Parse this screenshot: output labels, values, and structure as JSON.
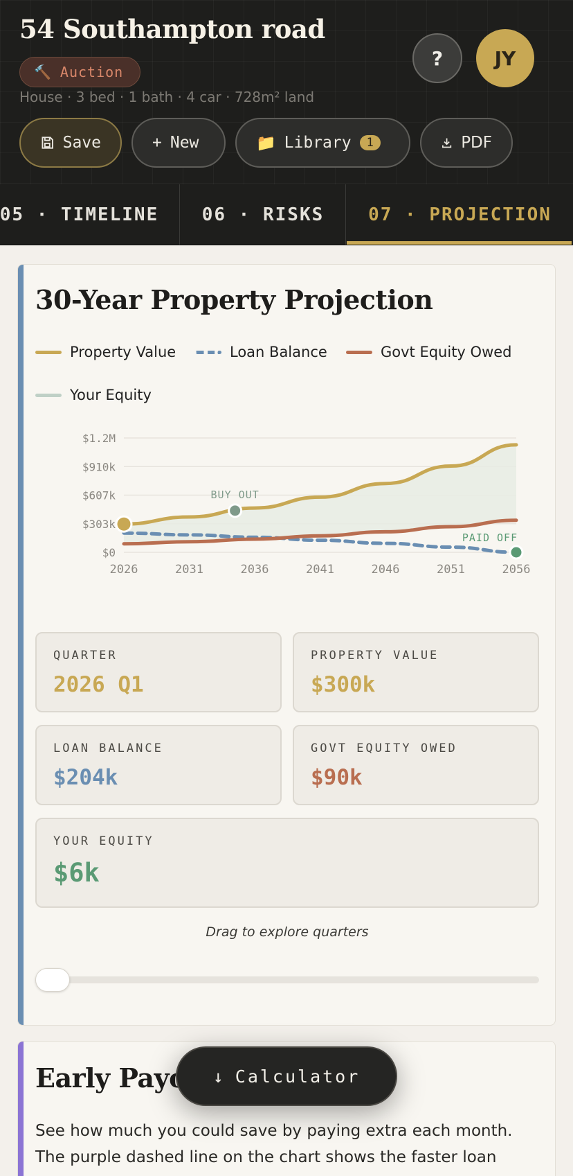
{
  "header": {
    "title": "54 Southampton road",
    "badge": {
      "icon": "hammer-icon",
      "label": "Auction"
    },
    "meta": "House · 3 bed · 1 bath · 4 car · 728m² land",
    "help_label": "?",
    "avatar_initials": "JY"
  },
  "toolbar": {
    "save_label": "Save",
    "new_label": "New",
    "library_label": "Library",
    "library_count": "1",
    "pdf_label": "PDF"
  },
  "tabs": [
    {
      "label": "05 · TIMELINE",
      "active": false
    },
    {
      "label": "06 · RISKS",
      "active": false
    },
    {
      "label": "07 · PROJECTION",
      "active": true
    }
  ],
  "projection": {
    "title": "30-Year Property Projection",
    "legend": [
      {
        "name": "Property Value",
        "color": "#c8a854",
        "style": "solid"
      },
      {
        "name": "Loan Balance",
        "color": "#6a8eb2",
        "style": "dashed"
      },
      {
        "name": "Govt Equity Owed",
        "color": "#b96e50",
        "style": "solid"
      },
      {
        "name": "Your Equity",
        "color": "#bfd0c6",
        "style": "solid"
      }
    ],
    "stats": {
      "quarter_label": "QUARTER",
      "quarter_value": "2026 Q1",
      "property_label": "PROPERTY VALUE",
      "property_value": "$300k",
      "loan_label": "LOAN BALANCE",
      "loan_value": "$204k",
      "govt_label": "GOVT EQUITY OWED",
      "govt_value": "$90k",
      "equity_label": "YOUR EQUITY",
      "equity_value": "$6k"
    },
    "hint": "Drag to explore quarters",
    "slider_position": 0
  },
  "chart_data": {
    "type": "line",
    "title": "30-Year Property Projection",
    "x": [
      2026,
      2031,
      2036,
      2041,
      2046,
      2051,
      2056
    ],
    "x_ticks": [
      "2026",
      "2031",
      "2036",
      "2041",
      "2046",
      "2051",
      "2056"
    ],
    "y_ticks": [
      "$0",
      "$303k",
      "$607k",
      "$910k",
      "$1.2M"
    ],
    "ylim": [
      0,
      1213000
    ],
    "grid": true,
    "series": [
      {
        "name": "Property Value",
        "color": "#c8a854",
        "dash": false,
        "values": [
          300000,
          375000,
          470000,
          585000,
          730000,
          915000,
          1140000
        ]
      },
      {
        "name": "Loan Balance",
        "color": "#6a8eb2",
        "dash": true,
        "values": [
          204000,
          185000,
          160000,
          128000,
          95000,
          55000,
          0
        ]
      },
      {
        "name": "Govt Equity Owed",
        "color": "#b96e50",
        "dash": false,
        "values": [
          90000,
          112000,
          140000,
          175000,
          218000,
          272000,
          340000
        ]
      }
    ],
    "annotations": [
      {
        "label": "BUY OUT",
        "x": 2034.5,
        "y": 442000,
        "color": "#7f9a8a"
      },
      {
        "label": "PAID OFF",
        "x": 2056,
        "y": 0,
        "color": "#5a9a74"
      }
    ],
    "highlight": {
      "x": 2026,
      "y": 300000,
      "color": "#c8a854"
    }
  },
  "payoff": {
    "title": "Early Payoff Modelling",
    "description": "See how much you could save by paying extra each month. The purple dashed line on the chart shows the faster loan paydown."
  },
  "calculator": {
    "label": "Calculator",
    "icon": "arrow-down-icon"
  }
}
